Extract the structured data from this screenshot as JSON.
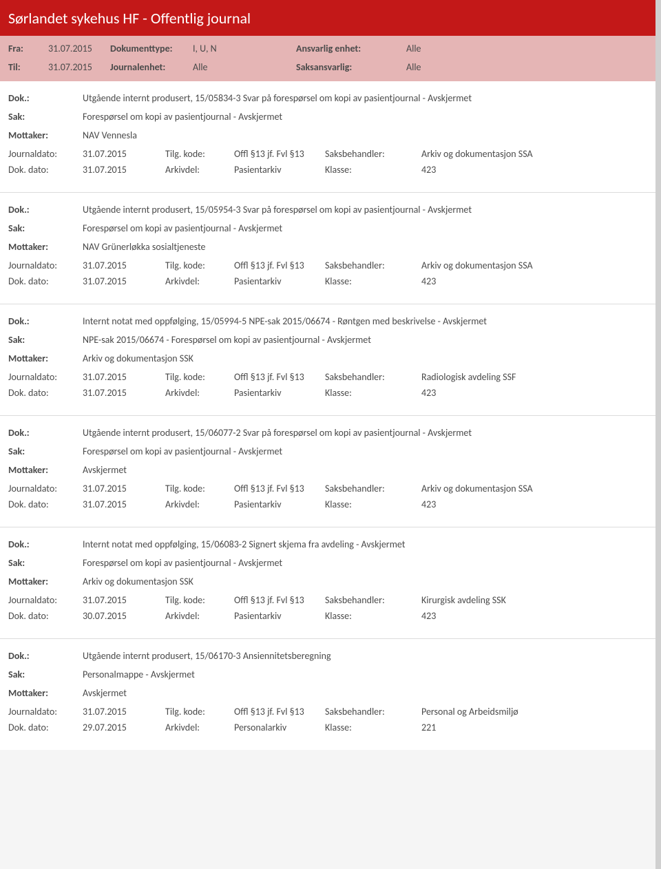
{
  "colors": {
    "header_bg": "#c31818",
    "header_text": "#ffffff",
    "filter_bg": "#e5b5b5",
    "body_text": "#4a4a4a",
    "divider": "#dcdcdc",
    "page_bg": "#ffffff"
  },
  "header": {
    "title": "Sørlandet sykehus HF - Offentlig journal"
  },
  "filter": {
    "fra_label": "Fra:",
    "fra_value": "31.07.2015",
    "til_label": "Til:",
    "til_value": "31.07.2015",
    "doktype_label": "Dokumenttype:",
    "doktype_value": "I, U, N",
    "journalenhet_label": "Journalenhet:",
    "journalenhet_value": "Alle",
    "ansvarlig_label": "Ansvarlig enhet:",
    "ansvarlig_value": "Alle",
    "saksansvarlig_label": "Saksansvarlig:",
    "saksansvarlig_value": "Alle"
  },
  "labels": {
    "dok": "Dok.:",
    "sak": "Sak:",
    "mottaker": "Mottaker:",
    "journaldato": "Journaldato:",
    "dokdato": "Dok. dato:",
    "tilgkode": "Tilg. kode:",
    "arkivdel": "Arkivdel:",
    "saksbehandler": "Saksbehandler:",
    "klasse": "Klasse:"
  },
  "entries": [
    {
      "dok": "Utgående internt produsert, 15/05834-3 Svar på forespørsel om kopi av pasientjournal - Avskjermet",
      "sak": "Forespørsel om kopi av pasientjournal - Avskjermet",
      "mottaker": "NAV Vennesla",
      "journaldato": "31.07.2015",
      "tilgkode": "Offl §13 jf. Fvl §13",
      "saksbehandler": "Arkiv og dokumentasjon SSA",
      "dokdato": "31.07.2015",
      "arkivdel": "Pasientarkiv",
      "klasse": "423"
    },
    {
      "dok": "Utgående internt produsert, 15/05954-3 Svar på forespørsel om kopi av pasientjournal - Avskjermet",
      "sak": "Forespørsel om kopi av pasientjournal - Avskjermet",
      "mottaker": "NAV Grünerløkka sosialtjeneste",
      "journaldato": "31.07.2015",
      "tilgkode": "Offl §13 jf. Fvl §13",
      "saksbehandler": "Arkiv og dokumentasjon SSA",
      "dokdato": "31.07.2015",
      "arkivdel": "Pasientarkiv",
      "klasse": "423"
    },
    {
      "dok": "Internt notat med oppfølging, 15/05994-5 NPE-sak 2015/06674 - Røntgen med beskrivelse - Avskjermet",
      "sak": "NPE-sak 2015/06674 - Forespørsel om kopi av pasientjournal - Avskjermet",
      "mottaker": "Arkiv og dokumentasjon SSK",
      "journaldato": "31.07.2015",
      "tilgkode": "Offl §13 jf. Fvl §13",
      "saksbehandler": "Radiologisk avdeling SSF",
      "dokdato": "31.07.2015",
      "arkivdel": "Pasientarkiv",
      "klasse": "423"
    },
    {
      "dok": "Utgående internt produsert, 15/06077-2 Svar på forespørsel om kopi av pasientjournal - Avskjermet",
      "sak": "Forespørsel om kopi av pasientjournal - Avskjermet",
      "mottaker": "Avskjermet",
      "journaldato": "31.07.2015",
      "tilgkode": "Offl §13 jf. Fvl §13",
      "saksbehandler": "Arkiv og dokumentasjon SSA",
      "dokdato": "31.07.2015",
      "arkivdel": "Pasientarkiv",
      "klasse": "423"
    },
    {
      "dok": "Internt notat med oppfølging, 15/06083-2 Signert skjema fra avdeling - Avskjermet",
      "sak": "Forespørsel om kopi av pasientjournal - Avskjermet",
      "mottaker": "Arkiv og dokumentasjon SSK",
      "journaldato": "31.07.2015",
      "tilgkode": "Offl §13 jf. Fvl §13",
      "saksbehandler": "Kirurgisk avdeling SSK",
      "dokdato": "30.07.2015",
      "arkivdel": "Pasientarkiv",
      "klasse": "423"
    },
    {
      "dok": "Utgående internt produsert, 15/06170-3 Ansiennitetsberegning",
      "sak": "Personalmappe - Avskjermet",
      "mottaker": "Avskjermet",
      "journaldato": "31.07.2015",
      "tilgkode": "Offl §13 jf. Fvl §13",
      "saksbehandler": "Personal og Arbeidsmiljø",
      "dokdato": "29.07.2015",
      "arkivdel": "Personalarkiv",
      "klasse": "221"
    }
  ]
}
